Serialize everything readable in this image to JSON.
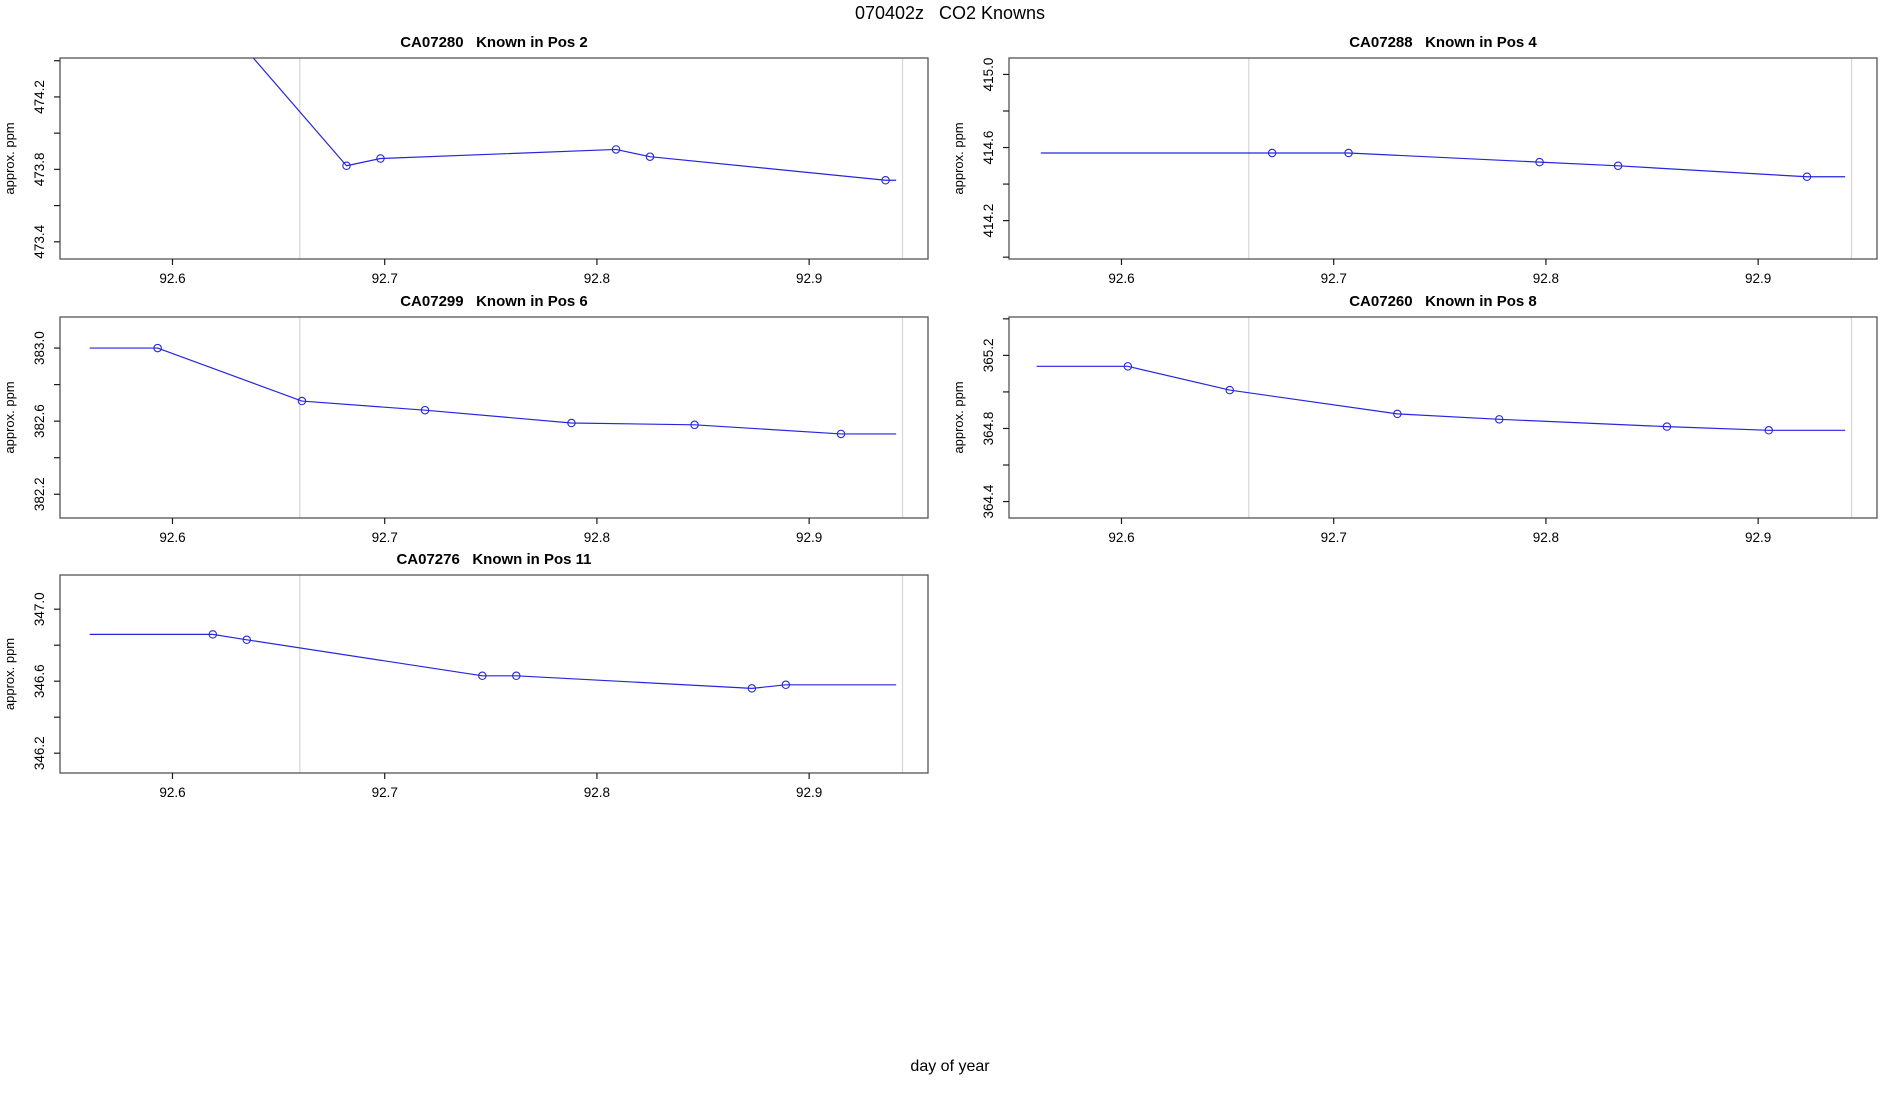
{
  "figure": {
    "title": "070402z   CO2 Knowns",
    "xlabel": "day of year"
  },
  "chart_data": {
    "type": "line",
    "title": "070402z   CO2 Knowns",
    "xlabel": "day of year",
    "ylabel": "approx. ppm",
    "grid": "vertical-marker-lines-only",
    "legend": "none",
    "x_range": [
      92.547,
      92.956
    ],
    "x_ticks": [
      92.6,
      92.7,
      92.8,
      92.9
    ],
    "x_tick_labels": [
      "92.6",
      "92.7",
      "92.8",
      "92.9"
    ],
    "vlines": [
      92.66,
      92.944
    ],
    "colors": {
      "line": "#2626e0",
      "marker": "#2626e0",
      "grid": "#d8d8d8",
      "frame": "#545454",
      "tick": "#1a1a1a",
      "text": "#000000"
    },
    "subplots": [
      {
        "title": "CA07280   Known in Pos 2",
        "y_range": [
          473.305,
          474.415
        ],
        "y_ticks": [
          473.4,
          473.6,
          473.8,
          474.0,
          474.2,
          474.4
        ],
        "y_tick_labels": [
          "473.4",
          "",
          "473.8",
          "",
          "474.2",
          ""
        ],
        "line": [
          [
            92.62,
            474.66
          ],
          [
            92.682,
            473.82
          ],
          [
            92.698,
            473.86
          ],
          [
            92.809,
            473.91
          ],
          [
            92.825,
            473.87
          ],
          [
            92.936,
            473.74
          ],
          [
            92.941,
            473.74
          ]
        ],
        "points": [
          [
            92.682,
            473.82
          ],
          [
            92.698,
            473.86
          ],
          [
            92.809,
            473.91
          ],
          [
            92.825,
            473.87
          ],
          [
            92.936,
            473.74
          ]
        ]
      },
      {
        "title": "CA07288   Known in Pos 4",
        "y_range": [
          413.99,
          415.09
        ],
        "y_ticks": [
          414.0,
          414.2,
          414.4,
          414.6,
          414.8,
          415.0
        ],
        "y_tick_labels": [
          "",
          "414.2",
          "",
          "414.6",
          "",
          "415.0"
        ],
        "line": [
          [
            92.562,
            414.57
          ],
          [
            92.671,
            414.57
          ],
          [
            92.707,
            414.57
          ],
          [
            92.797,
            414.52
          ],
          [
            92.834,
            414.5
          ],
          [
            92.923,
            414.44
          ],
          [
            92.941,
            414.44
          ]
        ],
        "points": [
          [
            92.671,
            414.57
          ],
          [
            92.707,
            414.57
          ],
          [
            92.797,
            414.52
          ],
          [
            92.834,
            414.5
          ],
          [
            92.923,
            414.44
          ]
        ]
      },
      {
        "title": "CA07299   Known in Pos 6",
        "y_range": [
          382.07,
          383.17
        ],
        "y_ticks": [
          382.2,
          382.4,
          382.6,
          382.8,
          383.0
        ],
        "y_tick_labels": [
          "382.2",
          "",
          "382.6",
          "",
          "383.0"
        ],
        "line": [
          [
            92.561,
            383.0
          ],
          [
            92.593,
            383.0
          ],
          [
            92.661,
            382.71
          ],
          [
            92.719,
            382.66
          ],
          [
            92.788,
            382.59
          ],
          [
            92.846,
            382.58
          ],
          [
            92.915,
            382.53
          ],
          [
            92.941,
            382.53
          ]
        ],
        "points": [
          [
            92.593,
            383.0
          ],
          [
            92.661,
            382.71
          ],
          [
            92.719,
            382.66
          ],
          [
            92.788,
            382.59
          ],
          [
            92.846,
            382.58
          ],
          [
            92.915,
            382.53
          ]
        ]
      },
      {
        "title": "CA07260   Known in Pos 8",
        "y_range": [
          364.31,
          365.41
        ],
        "y_ticks": [
          364.4,
          364.6,
          364.8,
          365.0,
          365.2,
          365.4
        ],
        "y_tick_labels": [
          "364.4",
          "",
          "364.8",
          "",
          "365.2",
          ""
        ],
        "line": [
          [
            92.56,
            365.14
          ],
          [
            92.603,
            365.14
          ],
          [
            92.651,
            365.01
          ],
          [
            92.73,
            364.88
          ],
          [
            92.778,
            364.85
          ],
          [
            92.857,
            364.81
          ],
          [
            92.905,
            364.79
          ],
          [
            92.941,
            364.79
          ]
        ],
        "points": [
          [
            92.603,
            365.14
          ],
          [
            92.651,
            365.01
          ],
          [
            92.73,
            364.88
          ],
          [
            92.778,
            364.85
          ],
          [
            92.857,
            364.81
          ],
          [
            92.905,
            364.79
          ]
        ]
      },
      {
        "title": "CA07276   Known in Pos 11",
        "y_range": [
          346.09,
          347.19
        ],
        "y_ticks": [
          346.2,
          346.4,
          346.6,
          346.8,
          347.0
        ],
        "y_tick_labels": [
          "346.2",
          "",
          "346.6",
          "",
          "347.0"
        ],
        "line": [
          [
            92.561,
            346.86
          ],
          [
            92.619,
            346.86
          ],
          [
            92.635,
            346.83
          ],
          [
            92.746,
            346.63
          ],
          [
            92.762,
            346.63
          ],
          [
            92.873,
            346.56
          ],
          [
            92.889,
            346.58
          ],
          [
            92.941,
            346.58
          ]
        ],
        "points": [
          [
            92.619,
            346.86
          ],
          [
            92.635,
            346.83
          ],
          [
            92.746,
            346.63
          ],
          [
            92.762,
            346.63
          ],
          [
            92.873,
            346.56
          ],
          [
            92.889,
            346.58
          ]
        ]
      }
    ]
  }
}
